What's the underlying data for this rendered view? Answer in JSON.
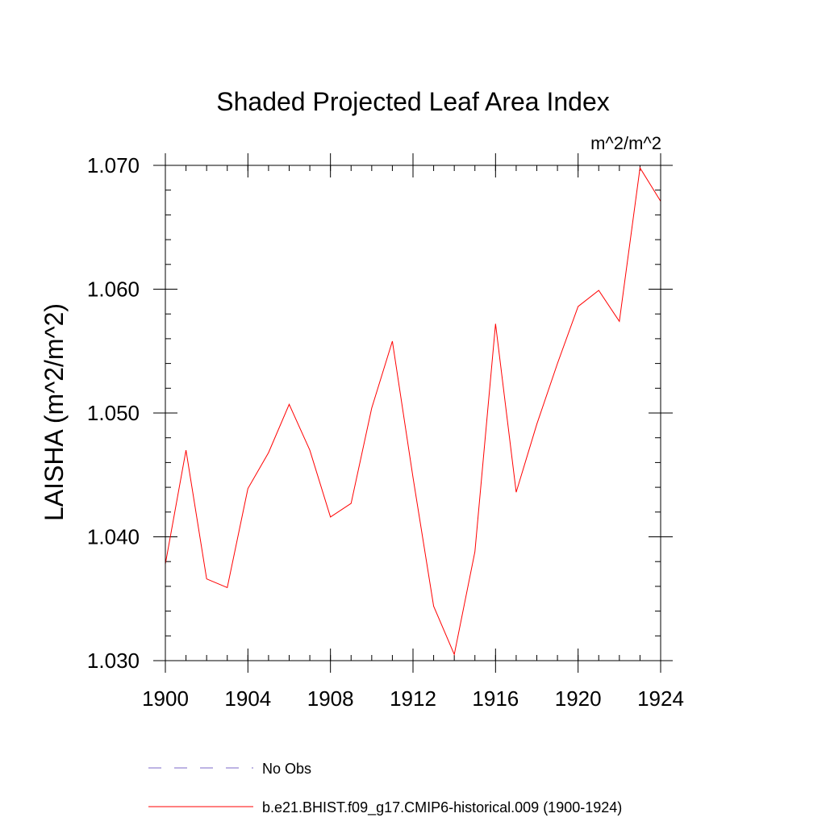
{
  "chart_data": {
    "type": "line",
    "title": "Shaded Projected Leaf Area Index",
    "units_label": "m^2/m^2",
    "ylabel": "LAISHA  (m^2/m^2)",
    "xlabel": "",
    "xlim": [
      1900,
      1924
    ],
    "ylim": [
      1.03,
      1.07
    ],
    "x_ticks": [
      1900,
      1904,
      1908,
      1912,
      1916,
      1920,
      1924
    ],
    "x_tick_labels": [
      "1900",
      "1904",
      "1908",
      "1912",
      "1916",
      "1920",
      "1924"
    ],
    "y_ticks": [
      1.03,
      1.04,
      1.05,
      1.06,
      1.07
    ],
    "y_tick_labels": [
      "1.030",
      "1.040",
      "1.050",
      "1.060",
      "1.070"
    ],
    "series": [
      {
        "name": "b.e21.BHIST.f09_g17.CMIP6-historical.009 (1900-1924)",
        "color": "#ff0000",
        "style": "solid",
        "x": [
          1900,
          1901,
          1902,
          1903,
          1904,
          1905,
          1906,
          1907,
          1908,
          1909,
          1910,
          1911,
          1912,
          1913,
          1914,
          1915,
          1916,
          1917,
          1918,
          1919,
          1920,
          1921,
          1922,
          1923,
          1924
        ],
        "values": [
          1.0378,
          1.047,
          1.0366,
          1.0359,
          1.0439,
          1.0468,
          1.0507,
          1.047,
          1.0416,
          1.0427,
          1.0504,
          1.0558,
          1.0448,
          1.0344,
          1.0305,
          1.0388,
          1.0572,
          1.0436,
          1.0491,
          1.054,
          1.0586,
          1.0599,
          1.0574,
          1.0698,
          1.0671
        ]
      }
    ],
    "legend": [
      {
        "label": "No Obs",
        "color": "#7b68c8",
        "style": "dashed"
      },
      {
        "label": "b.e21.BHIST.f09_g17.CMIP6-historical.009 (1900-1924)",
        "color": "#ff0000",
        "style": "solid"
      }
    ]
  }
}
